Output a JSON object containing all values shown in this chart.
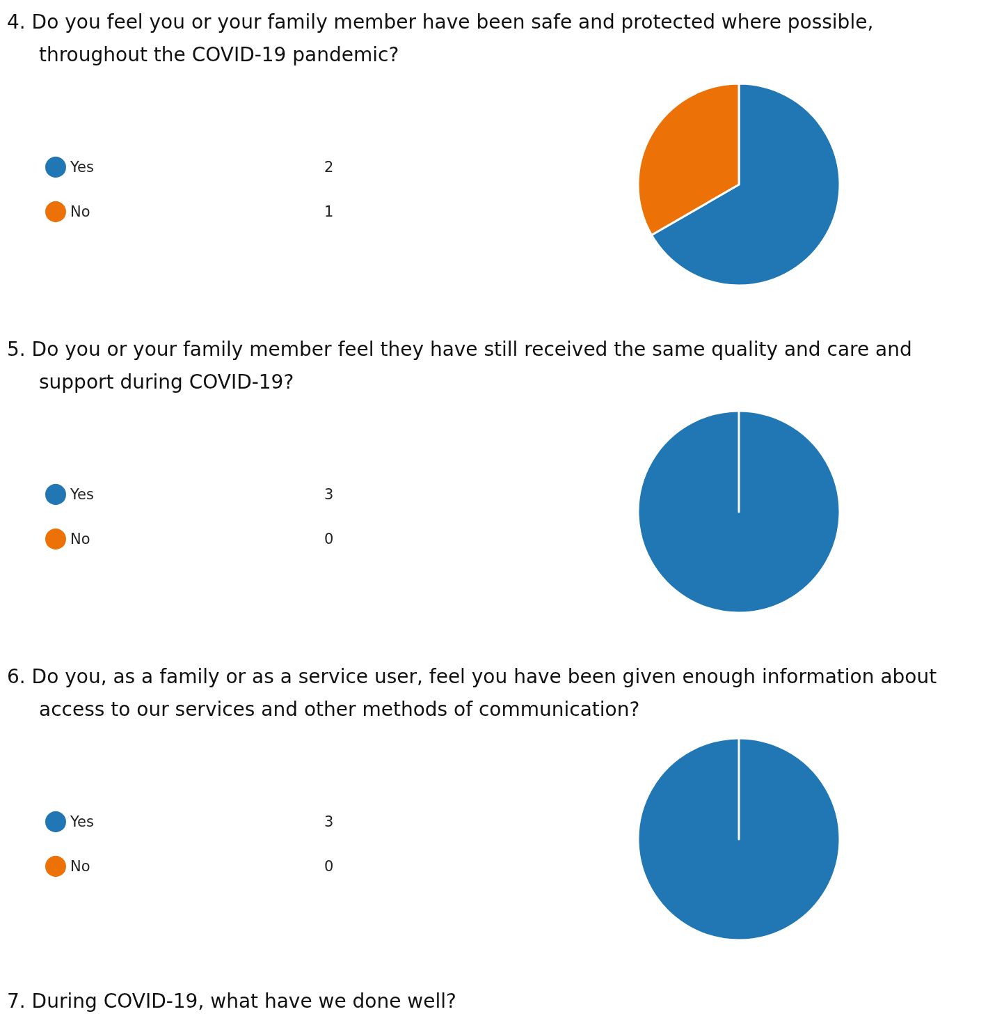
{
  "chart_data": [
    {
      "type": "pie",
      "title": "4. Do you feel you or your family member have been safe and protected where possible, throughout the COVID-19 pandemic?",
      "categories": [
        "Yes",
        "No"
      ],
      "values": [
        2,
        1
      ],
      "value_labels": [
        "2",
        "1"
      ],
      "colors": [
        "#2077b4",
        "#ec7208"
      ],
      "legend": "left"
    },
    {
      "type": "pie",
      "title": "5. Do you or your family member feel they have still received the same quality and care and support during COVID-19?",
      "categories": [
        "Yes",
        "No"
      ],
      "values": [
        3,
        0
      ],
      "value_labels": [
        "3",
        "0"
      ],
      "colors": [
        "#2077b4",
        "#ec7208"
      ],
      "legend": "left"
    },
    {
      "type": "pie",
      "title": "6. Do you, as a family or as a service user, feel you have been given enough information about access to our services and other methods of communication?",
      "categories": [
        "Yes",
        "No"
      ],
      "values": [
        3,
        0
      ],
      "value_labels": [
        "3",
        "0"
      ],
      "colors": [
        "#2077b4",
        "#ec7208"
      ],
      "legend": "left",
      "annotations": [
        "7. During COVID-19, what have we done well?"
      ]
    }
  ]
}
